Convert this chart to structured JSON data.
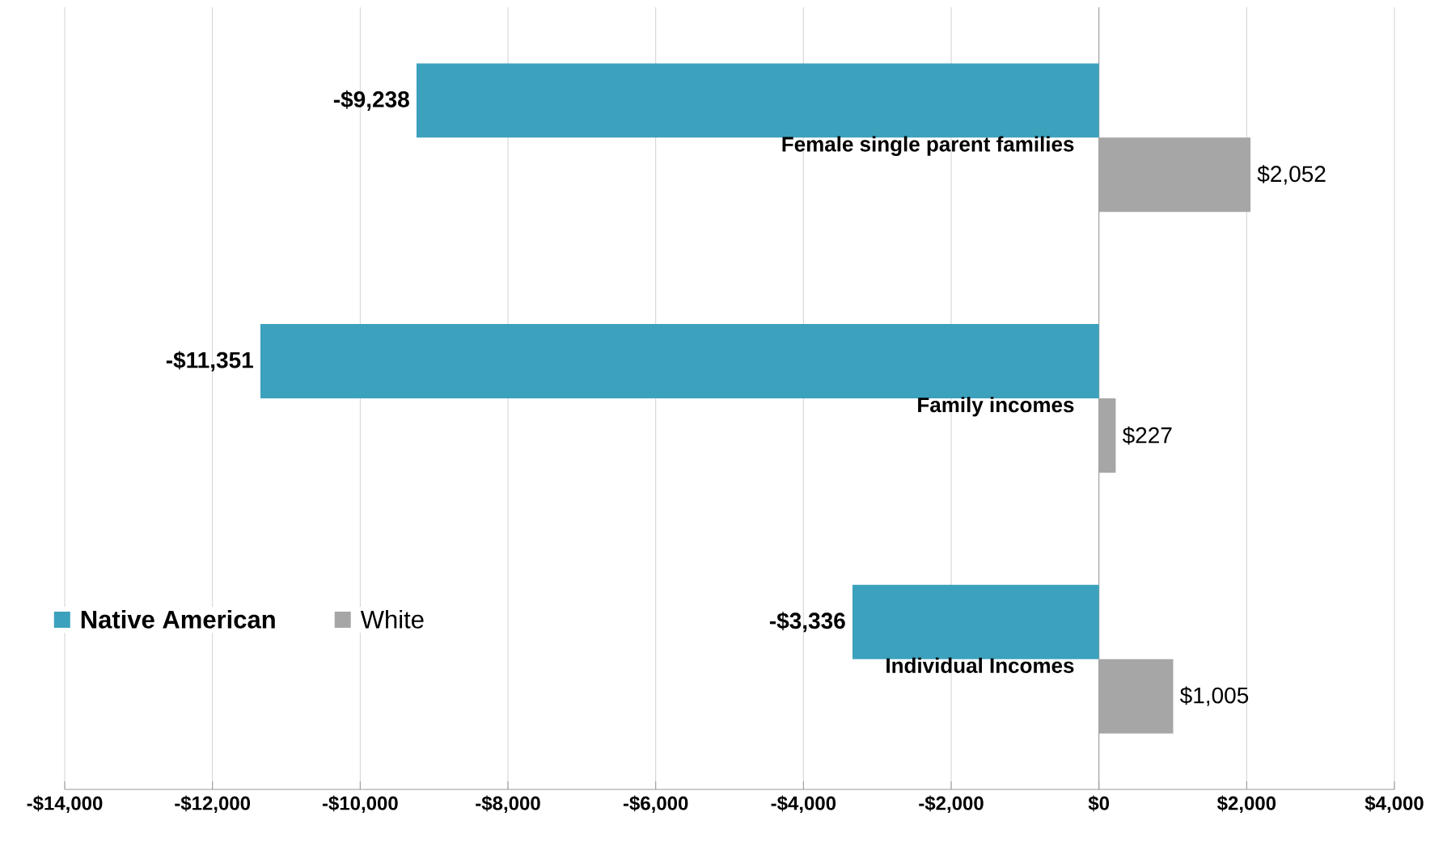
{
  "chart_data": {
    "type": "bar",
    "orientation": "horizontal",
    "categories": [
      "Female single parent families",
      "Family incomes",
      "Individual Incomes"
    ],
    "series": [
      {
        "name": "Native American",
        "color": "#3ba1bd",
        "values": [
          -9238,
          -11351,
          -3336
        ],
        "value_labels": [
          "-$9,238",
          "-$11,351",
          "-$3,336"
        ]
      },
      {
        "name": "White",
        "color": "#a6a6a6",
        "values": [
          2052,
          227,
          1005
        ],
        "value_labels": [
          "$2,052",
          "$227",
          "$1,005"
        ]
      }
    ],
    "xlim": [
      -14000,
      4000
    ],
    "xticks": [
      {
        "value": -14000,
        "label": "-$14,000"
      },
      {
        "value": -12000,
        "label": "-$12,000"
      },
      {
        "value": -10000,
        "label": "-$10,000"
      },
      {
        "value": -8000,
        "label": "-$8,000"
      },
      {
        "value": -6000,
        "label": "-$6,000"
      },
      {
        "value": -4000,
        "label": "-$4,000"
      },
      {
        "value": -2000,
        "label": "-$2,000"
      },
      {
        "value": 0,
        "label": "$0"
      },
      {
        "value": 2000,
        "label": "$2,000"
      },
      {
        "value": 4000,
        "label": "$4,000"
      }
    ],
    "grid": "x",
    "legend": "left"
  }
}
